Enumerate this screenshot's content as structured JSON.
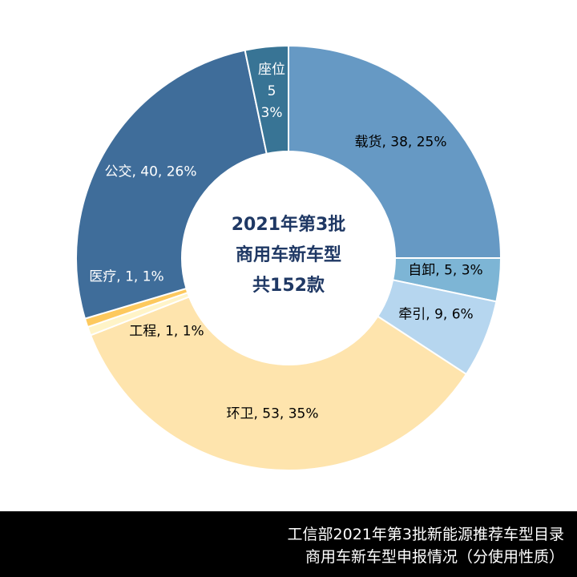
{
  "chart_data": {
    "type": "donut",
    "center_text": [
      "2021年第3批",
      "商用车新车型",
      "共152款"
    ],
    "values": [
      38,
      5,
      9,
      53,
      1,
      1,
      40,
      5
    ],
    "value_labels": [
      "载货, 38, 25%",
      "自卸, 5, 3%",
      "牵引, 9, 6%",
      "环卫, 53, 35%",
      "工程, 1, 1%",
      "医疗, 1, 1%",
      "公交, 40, 26%",
      "座位\n5\n3%"
    ],
    "colors": [
      "#6699c4",
      "#7db5d5",
      "#b6d6ef",
      "#fee4ad",
      "#fff4c8",
      "#fdc95e",
      "#3f6d9a",
      "#387495"
    ],
    "footer": [
      "工信部2021年第3批新能源推荐车型目录",
      "商用车新车型申报情况（分使用性质）"
    ]
  }
}
